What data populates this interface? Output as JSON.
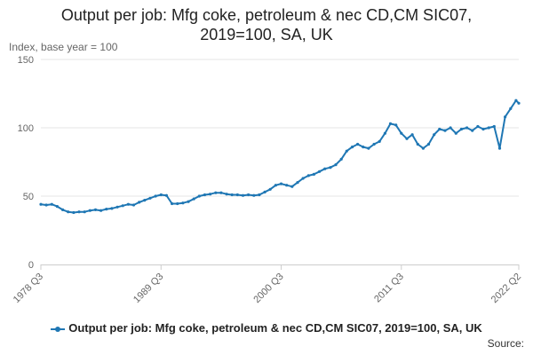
{
  "chart_data": {
    "type": "line",
    "title_lines": [
      "Output per job: Mfg coke, petroleum & nec CD,CM SIC07,",
      "2019=100, SA, UK"
    ],
    "y_unit_label": "Index, base year = 100",
    "ylim": [
      0,
      150
    ],
    "y_ticks": [
      "0",
      "50",
      "100",
      "150"
    ],
    "x_ticks": [
      "1978 Q3",
      "1989 Q3",
      "2000 Q3",
      "2011 Q3",
      "2022 Q2"
    ],
    "grid": true,
    "legend_position": "bottom",
    "series": [
      {
        "name": "Output per job: Mfg coke, petroleum & nec CD,CM SIC07, 2019=100, SA, UK",
        "color": "#1f77b4",
        "points": [
          [
            "1978 Q3",
            44
          ],
          [
            "1979 Q1",
            43.5
          ],
          [
            "1979 Q3",
            44
          ],
          [
            "1980 Q1",
            42.5
          ],
          [
            "1980 Q3",
            40
          ],
          [
            "1981 Q1",
            38.5
          ],
          [
            "1981 Q3",
            38
          ],
          [
            "1982 Q1",
            38.5
          ],
          [
            "1982 Q3",
            38.5
          ],
          [
            "1983 Q1",
            39.5
          ],
          [
            "1983 Q3",
            40
          ],
          [
            "1984 Q1",
            39.5
          ],
          [
            "1984 Q3",
            40.5
          ],
          [
            "1985 Q1",
            41
          ],
          [
            "1985 Q3",
            42
          ],
          [
            "1986 Q1",
            43
          ],
          [
            "1986 Q3",
            44
          ],
          [
            "1987 Q1",
            43.5
          ],
          [
            "1987 Q3",
            45.5
          ],
          [
            "1988 Q1",
            47
          ],
          [
            "1988 Q3",
            48.5
          ],
          [
            "1989 Q1",
            50
          ],
          [
            "1989 Q3",
            51
          ],
          [
            "1990 Q1",
            50.5
          ],
          [
            "1990 Q3",
            44.5
          ],
          [
            "1991 Q1",
            44.5
          ],
          [
            "1991 Q3",
            45
          ],
          [
            "1992 Q1",
            46
          ],
          [
            "1992 Q3",
            48
          ],
          [
            "1993 Q1",
            50
          ],
          [
            "1993 Q3",
            51
          ],
          [
            "1994 Q1",
            51.5
          ],
          [
            "1994 Q3",
            52.5
          ],
          [
            "1995 Q1",
            52.5
          ],
          [
            "1995 Q3",
            51.5
          ],
          [
            "1996 Q1",
            51
          ],
          [
            "1996 Q3",
            51
          ],
          [
            "1997 Q1",
            50.5
          ],
          [
            "1997 Q3",
            51
          ],
          [
            "1998 Q1",
            50.5
          ],
          [
            "1998 Q3",
            51
          ],
          [
            "1999 Q1",
            53
          ],
          [
            "1999 Q3",
            55
          ],
          [
            "2000 Q1",
            58
          ],
          [
            "2000 Q3",
            59
          ],
          [
            "2001 Q1",
            58
          ],
          [
            "2001 Q3",
            57
          ],
          [
            "2002 Q1",
            60
          ],
          [
            "2002 Q3",
            63
          ],
          [
            "2003 Q1",
            65
          ],
          [
            "2003 Q3",
            66
          ],
          [
            "2004 Q1",
            68
          ],
          [
            "2004 Q3",
            70
          ],
          [
            "2005 Q1",
            71
          ],
          [
            "2005 Q3",
            73
          ],
          [
            "2006 Q1",
            77
          ],
          [
            "2006 Q3",
            83
          ],
          [
            "2007 Q1",
            86
          ],
          [
            "2007 Q3",
            88
          ],
          [
            "2008 Q1",
            86
          ],
          [
            "2008 Q3",
            85
          ],
          [
            "2009 Q1",
            88
          ],
          [
            "2009 Q3",
            90
          ],
          [
            "2010 Q1",
            96
          ],
          [
            "2010 Q3",
            103
          ],
          [
            "2011 Q1",
            102
          ],
          [
            "2011 Q3",
            96
          ],
          [
            "2012 Q1",
            92
          ],
          [
            "2012 Q3",
            95
          ],
          [
            "2013 Q1",
            88
          ],
          [
            "2013 Q3",
            85
          ],
          [
            "2014 Q1",
            88
          ],
          [
            "2014 Q3",
            95
          ],
          [
            "2015 Q1",
            99
          ],
          [
            "2015 Q3",
            98
          ],
          [
            "2016 Q1",
            100
          ],
          [
            "2016 Q3",
            96
          ],
          [
            "2017 Q1",
            99
          ],
          [
            "2017 Q3",
            100
          ],
          [
            "2018 Q1",
            98
          ],
          [
            "2018 Q3",
            101
          ],
          [
            "2019 Q1",
            99
          ],
          [
            "2019 Q3",
            100
          ],
          [
            "2020 Q1",
            101
          ],
          [
            "2020 Q3",
            85
          ],
          [
            "2021 Q1",
            108
          ],
          [
            "2021 Q3",
            114
          ],
          [
            "2022 Q1",
            120
          ],
          [
            "2022 Q2",
            118
          ]
        ]
      }
    ]
  },
  "source_label": "Source:"
}
